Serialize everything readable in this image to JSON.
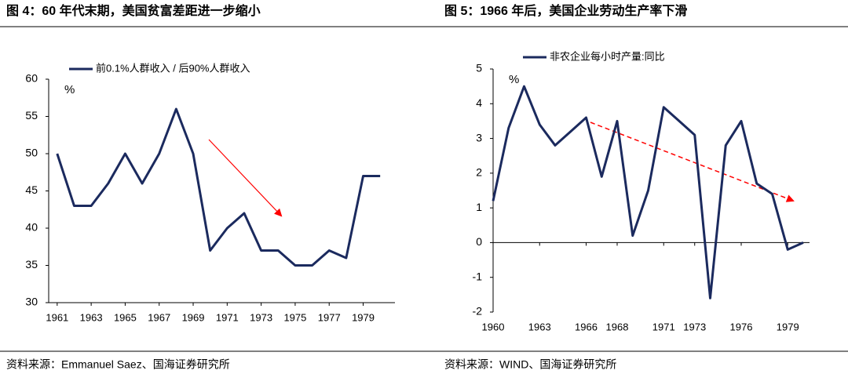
{
  "chart_data": [
    {
      "type": "line",
      "title": "图 4：60 年代末期，美国贫富差距进一步缩小",
      "unit": "%",
      "source": "资料来源：Emmanuel Saez、国海证券研究所",
      "x": [
        1961,
        1962,
        1963,
        1964,
        1965,
        1966,
        1967,
        1968,
        1969,
        1970,
        1971,
        1972,
        1973,
        1974,
        1975,
        1976,
        1977,
        1978,
        1979,
        1980
      ],
      "series": [
        {
          "name": "前0.1%人群收入 / 后90%人群收入",
          "color": "#1b2a5e",
          "values": [
            50,
            43,
            43,
            46,
            50,
            46,
            50,
            56,
            50,
            37,
            40,
            42,
            37,
            37,
            35,
            35,
            37,
            36,
            47,
            47
          ]
        }
      ],
      "xlim": [
        1960.5,
        1980.5
      ],
      "xticks": [
        1961,
        1963,
        1965,
        1967,
        1969,
        1971,
        1973,
        1975,
        1977,
        1979
      ],
      "ylim": [
        30,
        60
      ],
      "yticks": [
        30,
        35,
        40,
        45,
        50,
        55,
        60
      ],
      "grid": false
    },
    {
      "type": "line",
      "title": "图 5：1966 年后，美国企业劳动生产率下滑",
      "unit": "%",
      "source": "资料来源：WIND、国海证券研究所",
      "x": [
        1960,
        1961,
        1962,
        1963,
        1964,
        1965,
        1966,
        1967,
        1968,
        1969,
        1970,
        1971,
        1972,
        1973,
        1974,
        1975,
        1976,
        1977,
        1978,
        1979,
        1980
      ],
      "series": [
        {
          "name": "非农企业每小时产量:同比",
          "color": "#1b2a5e",
          "values": [
            1.2,
            3.3,
            4.5,
            3.4,
            2.8,
            3.2,
            3.6,
            1.9,
            3.5,
            0.2,
            1.5,
            3.9,
            3.5,
            3.1,
            -1.6,
            2.8,
            3.5,
            1.7,
            1.4,
            -0.2,
            0
          ]
        }
      ],
      "xlim": [
        1960,
        1980
      ],
      "xticks": [
        1960,
        1963,
        1966,
        1968,
        1971,
        1973,
        1976,
        1979
      ],
      "ylim": [
        -2,
        5
      ],
      "yticks": [
        -2,
        -1,
        0,
        1,
        2,
        3,
        4,
        5
      ],
      "grid": false
    }
  ]
}
